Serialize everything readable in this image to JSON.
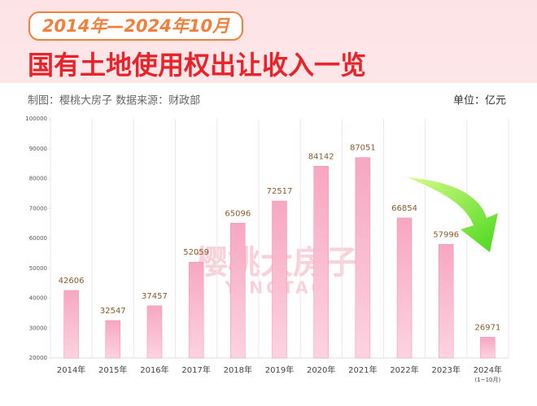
{
  "chart_data": {
    "type": "bar",
    "subtitle": "2014年—2024年10月",
    "title": "国有土地使用权出让收入一览",
    "source": "制图：樱桃大房子   数据来源：财政部",
    "unit": "单位：亿元",
    "watermark": "樱桃大房子",
    "watermark_sub": "YINGTAO",
    "categories": [
      "2014年",
      "2015年",
      "2016年",
      "2017年",
      "2018年",
      "2019年",
      "2020年",
      "2021年",
      "2022年",
      "2023年",
      "2024年"
    ],
    "x_note": "(1~10月)",
    "values": [
      42606,
      32547,
      37457,
      52059,
      65096,
      72517,
      84142,
      87051,
      66854,
      57996,
      26971
    ],
    "color": "#f48fb1",
    "ylim": [
      20000,
      100000
    ],
    "yticks": [
      20000,
      30000,
      40000,
      50000,
      60000,
      70000,
      80000,
      90000,
      100000
    ],
    "grid": false
  }
}
